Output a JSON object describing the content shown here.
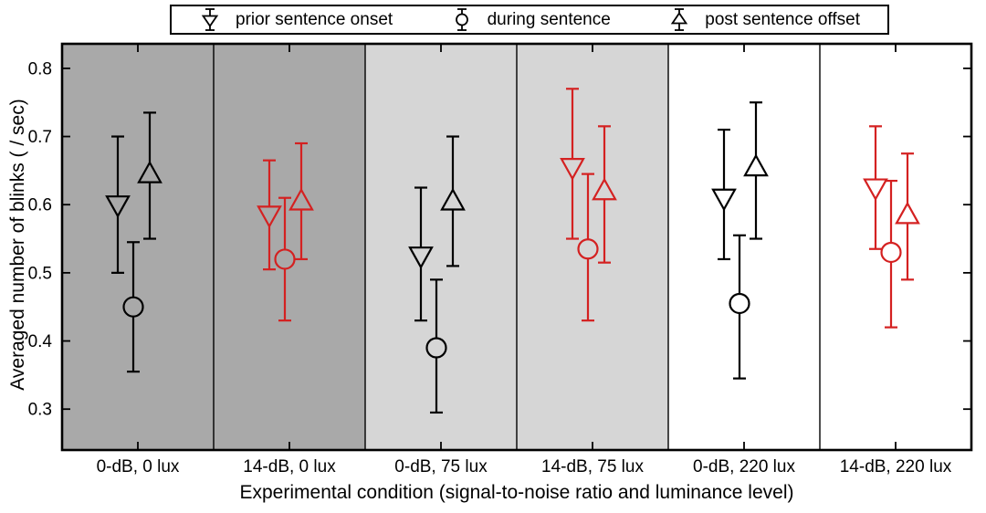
{
  "figure": {
    "background": "#ffffff",
    "frame_color": "#000000"
  },
  "legend": {
    "items": [
      {
        "marker": "triangle-down-errorbar",
        "label": "prior sentence onset"
      },
      {
        "marker": "circle-errorbar",
        "label": "during sentence"
      },
      {
        "marker": "triangle-up-errorbar",
        "label": "post sentence offset"
      }
    ]
  },
  "chart_data": {
    "type": "scatter",
    "subtype": "grouped errorbar plot",
    "title": "",
    "xlabel": "Experimental condition (signal-to-noise ratio and luminance level)",
    "ylabel": "Averaged number of blinks ( / sec)",
    "ylim": [
      0.24,
      0.836
    ],
    "yticks": [
      0.3,
      0.4,
      0.5,
      0.6,
      0.7,
      0.8
    ],
    "grid": false,
    "legend_position": "top-outside",
    "categories": [
      "0-dB, 0 lux",
      "14-dB, 0 lux",
      "0-dB, 75 lux",
      "14-dB, 75 lux",
      "0-dB, 220 lux",
      "14-dB, 220 lux"
    ],
    "panel_colors": [
      "#a9a9a9",
      "#a9a9a9",
      "#d6d6d6",
      "#d6d6d6",
      "#ffffff",
      "#ffffff"
    ],
    "category_colors": [
      "#000000",
      "#d42121",
      "#000000",
      "#d42121",
      "#000000",
      "#d42121"
    ],
    "series": [
      {
        "name": "prior sentence onset",
        "marker": "triangle-down",
        "means": [
          0.6,
          0.585,
          0.525,
          0.655,
          0.61,
          0.625
        ],
        "err_lo": [
          0.5,
          0.505,
          0.43,
          0.55,
          0.52,
          0.535
        ],
        "err_hi": [
          0.7,
          0.665,
          0.625,
          0.77,
          0.71,
          0.715
        ]
      },
      {
        "name": "during sentence",
        "marker": "circle",
        "means": [
          0.45,
          0.52,
          0.39,
          0.535,
          0.455,
          0.53
        ],
        "err_lo": [
          0.355,
          0.43,
          0.295,
          0.43,
          0.345,
          0.42
        ],
        "err_hi": [
          0.545,
          0.61,
          0.49,
          0.645,
          0.555,
          0.635
        ]
      },
      {
        "name": "post sentence offset",
        "marker": "triangle-up",
        "means": [
          0.645,
          0.605,
          0.605,
          0.62,
          0.655,
          0.585
        ],
        "err_lo": [
          0.55,
          0.52,
          0.51,
          0.515,
          0.55,
          0.49
        ],
        "err_hi": [
          0.735,
          0.69,
          0.7,
          0.715,
          0.75,
          0.675
        ]
      }
    ]
  }
}
